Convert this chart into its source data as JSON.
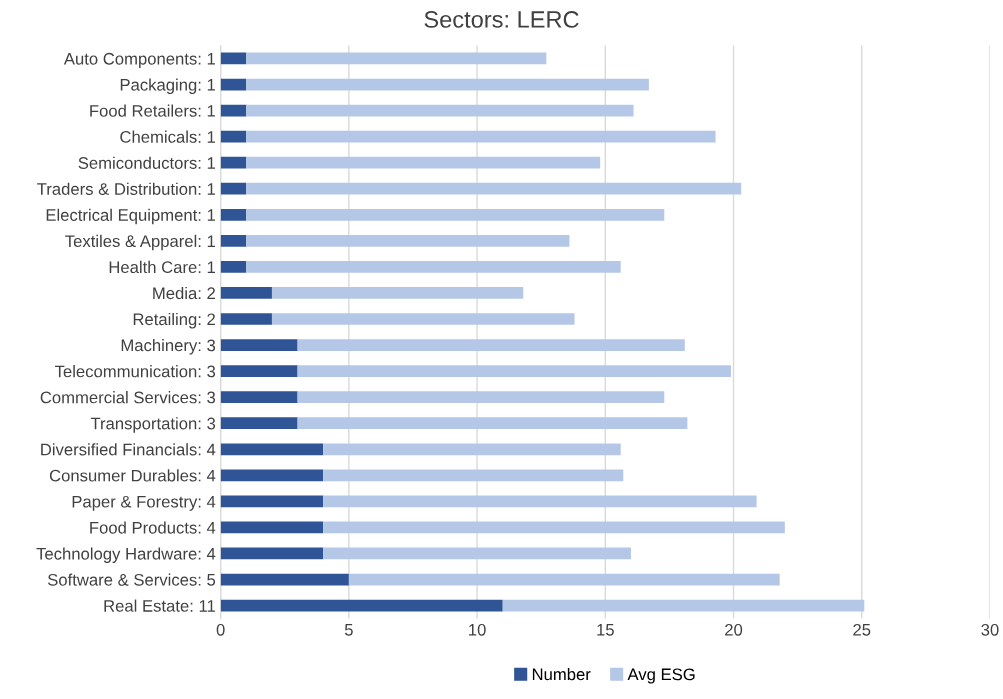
{
  "chart_data": {
    "type": "bar",
    "title": "Sectors: LERC",
    "orientation": "horizontal",
    "stacked": true,
    "categories": [
      "Auto Components: 1",
      "Packaging: 1",
      "Food Retailers: 1",
      "Chemicals: 1",
      "Semiconductors: 1",
      "Traders & Distribution: 1",
      "Electrical Equipment: 1",
      "Textiles & Apparel: 1",
      "Health Care: 1",
      "Media: 2",
      "Retailing: 2",
      "Machinery: 3",
      "Telecommunication: 3",
      "Commercial Services: 3",
      "Transportation: 3",
      "Diversified Financials: 4",
      "Consumer Durables: 4",
      "Paper & Forestry: 4",
      "Food Products: 4",
      "Technology Hardware: 4",
      "Software & Services: 5",
      "Real Estate: 11"
    ],
    "series": [
      {
        "name": "Number",
        "color": "#2f5597",
        "values": [
          1,
          1,
          1,
          1,
          1,
          1,
          1,
          1,
          1,
          2,
          2,
          3,
          3,
          3,
          3,
          4,
          4,
          4,
          4,
          4,
          5,
          11
        ]
      },
      {
        "name": "Avg ESG",
        "color": "#b4c7e7",
        "values": [
          11.7,
          15.7,
          15.1,
          18.3,
          13.8,
          19.3,
          16.3,
          12.6,
          14.6,
          9.8,
          11.8,
          15.1,
          16.9,
          14.3,
          15.2,
          11.6,
          11.7,
          16.9,
          18.0,
          12.0,
          16.8,
          14.1
        ]
      }
    ],
    "xlim": [
      0,
      30
    ],
    "xticks": [
      0,
      5,
      10,
      15,
      20,
      25,
      30
    ],
    "grid": "x",
    "legend": "bottom"
  }
}
